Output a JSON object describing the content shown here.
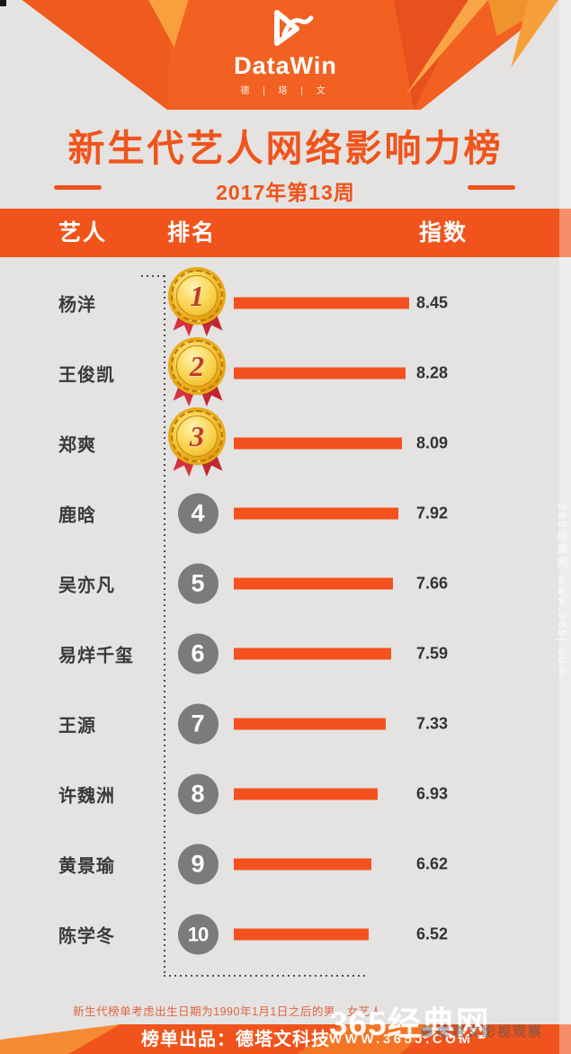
{
  "meta": {
    "bg_color": "#e4e3e1",
    "accent_color": "#f0541c",
    "bar_color": "#f4511e",
    "medal_gold": "#eaa715",
    "rank_circle_gray": "#7b7b7b"
  },
  "logo": {
    "name": "DataWin",
    "sub": "德 | 塔 | 文",
    "mark": "datawin-play-swoosh"
  },
  "title": "新生代艺人网络影响力榜",
  "subtitle": "2017年第13周",
  "table_header": {
    "artist": "艺人",
    "rank": "排名",
    "index": "指数"
  },
  "chart_data": {
    "type": "bar",
    "orientation": "horizontal",
    "title": "新生代艺人网络影响力榜",
    "subtitle": "2017年第13周",
    "categories": [
      "杨洋",
      "王俊凯",
      "郑爽",
      "鹿晗",
      "吴亦凡",
      "易烊千玺",
      "王源",
      "许魏洲",
      "黄景瑜",
      "陈学冬"
    ],
    "values": [
      8.45,
      8.28,
      8.09,
      7.92,
      7.66,
      7.59,
      7.33,
      6.93,
      6.62,
      6.52
    ],
    "ranks": [
      1,
      2,
      3,
      4,
      5,
      6,
      7,
      8,
      9,
      10
    ],
    "medal_ranks": 3,
    "xlabel": "指数",
    "xlim": [
      0,
      8.45
    ],
    "grid": false,
    "legend": false,
    "bar_color": "#f4511e"
  },
  "footnote": "新生代榜单考虑出生日期为1990年1月1日之后的男、女艺人",
  "footer": "榜单出品：德塔文科技",
  "watermark": {
    "site": "365经典网",
    "url": "WWW.365J.COM",
    "observer": "德塔文影视观察",
    "side": "365经典网 www.365j.com"
  }
}
